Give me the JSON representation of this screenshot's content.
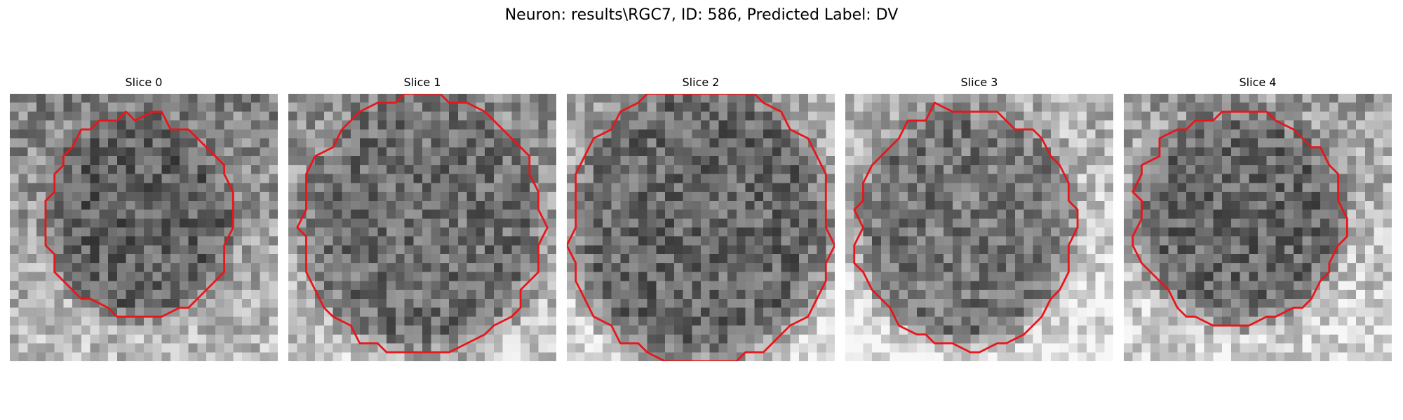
{
  "figure": {
    "title": "Neuron: results\\RGC7, ID: 586, Predicted Label: DV"
  },
  "panels": [
    {
      "title": "Slice 0"
    },
    {
      "title": "Slice 1"
    },
    {
      "title": "Slice 2"
    },
    {
      "title": "Slice 3"
    },
    {
      "title": "Slice 4"
    }
  ],
  "colors": {
    "contour": "#e8161b",
    "background": "#ffffff"
  }
}
